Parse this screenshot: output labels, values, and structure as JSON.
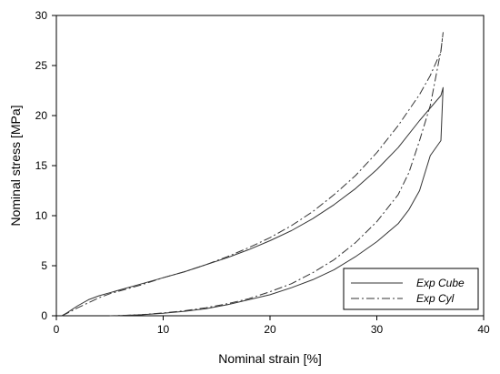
{
  "chart_data": {
    "type": "line",
    "xlabel": "Nominal strain [%]",
    "ylabel": "Nominal stress [MPa]",
    "xlim": [
      0,
      40
    ],
    "ylim": [
      0,
      30
    ],
    "xticks": [
      "0",
      "10",
      "20",
      "30",
      "40"
    ],
    "yticks": [
      "0",
      "5",
      "10",
      "15",
      "20",
      "25",
      "30"
    ],
    "grid": false,
    "legend_position": "bottom-right",
    "series": [
      {
        "name": "Exp Cube",
        "style": "solid",
        "color": "#333333",
        "x": [
          0.5,
          1,
          2,
          3,
          4,
          5,
          6,
          8,
          10,
          12,
          14,
          16,
          18,
          20,
          22,
          24,
          26,
          28,
          30,
          32,
          34,
          36,
          36.2,
          36,
          35,
          34,
          33,
          32,
          30,
          28,
          26,
          24,
          22,
          20,
          18,
          16,
          14,
          12,
          10,
          8,
          6,
          5
        ],
        "y": [
          0,
          0.3,
          1.0,
          1.6,
          2.0,
          2.3,
          2.6,
          3.2,
          3.8,
          4.4,
          5.1,
          5.8,
          6.6,
          7.5,
          8.5,
          9.7,
          11.1,
          12.7,
          14.6,
          16.8,
          19.5,
          22.0,
          22.8,
          17.5,
          16.0,
          12.5,
          10.6,
          9.2,
          7.4,
          5.9,
          4.6,
          3.6,
          2.8,
          2.1,
          1.6,
          1.1,
          0.7,
          0.45,
          0.25,
          0.1,
          0.02,
          0
        ]
      },
      {
        "name": "Exp Cyl",
        "style": "dash-dot",
        "color": "#333333",
        "x": [
          0.5,
          1,
          2,
          3,
          4,
          5,
          6,
          8,
          10,
          12,
          14,
          16,
          18,
          20,
          22,
          24,
          26,
          28,
          30,
          32,
          34,
          35,
          36,
          36.2,
          36,
          35,
          34,
          33,
          32,
          30,
          28,
          26,
          24,
          22,
          20,
          18,
          16,
          14,
          12,
          10,
          8,
          6,
          5
        ],
        "y": [
          0,
          0.25,
          0.8,
          1.3,
          1.8,
          2.2,
          2.5,
          3.1,
          3.8,
          4.4,
          5.1,
          5.9,
          6.8,
          7.8,
          9.0,
          10.4,
          12.1,
          14.0,
          16.3,
          19.0,
          22.1,
          24.0,
          26.4,
          28.3,
          26.5,
          21.0,
          17.5,
          14.3,
          12.1,
          9.4,
          7.3,
          5.6,
          4.3,
          3.2,
          2.4,
          1.7,
          1.2,
          0.8,
          0.5,
          0.28,
          0.12,
          0.03,
          0
        ]
      }
    ]
  }
}
